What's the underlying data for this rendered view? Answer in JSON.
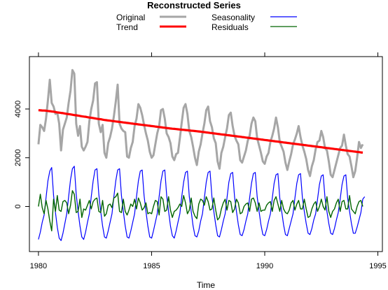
{
  "chart_data": {
    "type": "line",
    "title": "Reconstructed Series",
    "xlabel": "Time",
    "ylabel": "",
    "xlim": [
      1979.6,
      1995.2
    ],
    "ylim": [
      -1850,
      6150
    ],
    "x_ticks": [
      1980,
      1985,
      1990,
      1995
    ],
    "x_tick_labels": [
      "1980",
      "1985",
      "1990",
      "1995"
    ],
    "y_ticks": [
      0,
      2000,
      4000
    ],
    "y_tick_labels": [
      "0",
      "2000",
      "4000"
    ],
    "grid": false,
    "legend_position": "top-center",
    "x_start": 1980,
    "x_step": 0.08333,
    "series": [
      {
        "name": "Original",
        "color": "#a6a6a6",
        "values": [
          2550,
          3350,
          3250,
          3100,
          3600,
          4350,
          5200,
          4250,
          4100,
          3800,
          3850,
          3400,
          2300,
          3150,
          3400,
          3650,
          4250,
          4750,
          5600,
          5450,
          3400,
          2900,
          3300,
          2450,
          2300,
          2450,
          2650,
          3500,
          4000,
          4350,
          5050,
          5100,
          3400,
          3050,
          3350,
          2200,
          2000,
          2600,
          2850,
          3200,
          3700,
          4300,
          5000,
          3400,
          3200,
          3100,
          3050,
          2050,
          2000,
          2400,
          2650,
          3300,
          3600,
          4200,
          4050,
          3750,
          3350,
          3000,
          2700,
          2250,
          2000,
          2100,
          2550,
          3000,
          3300,
          3950,
          4000,
          3600,
          3000,
          2850,
          2600,
          2050,
          1900,
          2150,
          2200,
          2800,
          3450,
          4050,
          4200,
          3800,
          3100,
          2850,
          2450,
          2000,
          1700,
          2250,
          2550,
          3000,
          3400,
          3950,
          4100,
          3500,
          3250,
          2800,
          2600,
          1850,
          1550,
          2200,
          2450,
          2850,
          3200,
          3750,
          3850,
          3300,
          2900,
          2700,
          2550,
          1900,
          1800,
          2050,
          2300,
          2700,
          2900,
          3400,
          3650,
          3500,
          2800,
          2500,
          2200,
          1850,
          1750,
          2050,
          2200,
          2650,
          2900,
          3200,
          3650,
          3250,
          2650,
          2450,
          2250,
          1800,
          1500,
          1850,
          2150,
          2550,
          2750,
          3000,
          3300,
          2850,
          2500,
          2250,
          1950,
          1500,
          1250,
          1650,
          1900,
          2350,
          2650,
          2700,
          3100,
          2850,
          2400,
          2300,
          1850,
          1300,
          1200,
          1500,
          1800,
          2100,
          2400,
          2500,
          2950,
          2500,
          2150,
          2050,
          1650,
          1200,
          1450,
          2000,
          2650,
          2400,
          2550
        ]
      },
      {
        "name": "Trend",
        "color": "#ff0000",
        "values": [
          3950,
          3945,
          3940,
          3935,
          3930,
          3920,
          3910,
          3900,
          3890,
          3875,
          3860,
          3850,
          3840,
          3830,
          3815,
          3800,
          3790,
          3780,
          3765,
          3750,
          3740,
          3730,
          3715,
          3700,
          3690,
          3680,
          3665,
          3650,
          3640,
          3630,
          3615,
          3600,
          3590,
          3580,
          3565,
          3550,
          3540,
          3530,
          3520,
          3510,
          3500,
          3490,
          3480,
          3470,
          3460,
          3450,
          3440,
          3430,
          3420,
          3410,
          3400,
          3390,
          3380,
          3370,
          3360,
          3350,
          3340,
          3330,
          3320,
          3310,
          3300,
          3290,
          3280,
          3270,
          3260,
          3250,
          3240,
          3230,
          3220,
          3210,
          3200,
          3192,
          3184,
          3176,
          3168,
          3160,
          3152,
          3144,
          3136,
          3128,
          3120,
          3112,
          3104,
          3096,
          3088,
          3080,
          3070,
          3060,
          3050,
          3040,
          3030,
          3020,
          3010,
          3000,
          2990,
          2980,
          2970,
          2960,
          2950,
          2940,
          2930,
          2920,
          2910,
          2900,
          2890,
          2880,
          2870,
          2860,
          2850,
          2840,
          2830,
          2820,
          2810,
          2800,
          2790,
          2780,
          2770,
          2760,
          2750,
          2740,
          2730,
          2720,
          2710,
          2700,
          2690,
          2680,
          2670,
          2660,
          2650,
          2640,
          2630,
          2620,
          2610,
          2600,
          2590,
          2580,
          2570,
          2560,
          2550,
          2540,
          2530,
          2520,
          2510,
          2500,
          2490,
          2480,
          2470,
          2460,
          2450,
          2440,
          2430,
          2420,
          2410,
          2400,
          2390,
          2380,
          2370,
          2360,
          2350,
          2340,
          2330,
          2320,
          2310,
          2300,
          2290,
          2280,
          2270,
          2260,
          2250,
          2240,
          2230,
          2220,
          2210
        ]
      },
      {
        "name": "Seasonality",
        "color": "#0000ff",
        "values": [
          -1350,
          -1050,
          -650,
          -350,
          350,
          1050,
          1450,
          1600,
          450,
          -250,
          -850,
          -1300,
          -1400,
          -1100,
          -700,
          -300,
          400,
          1100,
          1550,
          1650,
          500,
          -200,
          -800,
          -1250,
          -1350,
          -1050,
          -650,
          -300,
          400,
          1050,
          1500,
          1550,
          500,
          -200,
          -800,
          -1250,
          -1300,
          -1000,
          -650,
          -300,
          400,
          1050,
          1500,
          1550,
          450,
          -200,
          -800,
          -1250,
          -1300,
          -1000,
          -650,
          -300,
          400,
          1050,
          1450,
          1500,
          450,
          -200,
          -800,
          -1250,
          -1300,
          -1000,
          -650,
          -300,
          400,
          1050,
          1450,
          1500,
          450,
          -200,
          -800,
          -1200,
          -1300,
          -1000,
          -650,
          -300,
          400,
          1000,
          1400,
          1450,
          400,
          -200,
          -800,
          -1200,
          -1250,
          -1000,
          -600,
          -300,
          350,
          1000,
          1400,
          1450,
          400,
          -200,
          -750,
          -1200,
          -1250,
          -950,
          -600,
          -300,
          350,
          1000,
          1350,
          1400,
          400,
          -200,
          -750,
          -1150,
          -1200,
          -950,
          -600,
          -300,
          350,
          950,
          1350,
          1400,
          400,
          -200,
          -750,
          -1150,
          -1200,
          -950,
          -600,
          -300,
          350,
          950,
          1300,
          1350,
          350,
          -200,
          -750,
          -1150,
          -1200,
          -900,
          -600,
          -300,
          350,
          950,
          1300,
          1350,
          350,
          -200,
          -700,
          -1100,
          -1150,
          -900,
          -550,
          -300,
          300,
          900,
          1250,
          1300,
          350,
          -200,
          -700,
          -1100,
          -1150,
          -900,
          -550,
          -250,
          300,
          900,
          1250,
          1300,
          350,
          -200,
          -700,
          -1100,
          -1100,
          -850,
          -550,
          -250,
          300,
          400
        ]
      },
      {
        "name": "Residuals",
        "color": "#006400",
        "values": [
          0,
          500,
          -50,
          -300,
          250,
          -100,
          -600,
          -1000,
          300,
          -200,
          450,
          -150,
          -200,
          200,
          250,
          150,
          -300,
          50,
          650,
          500,
          -250,
          -200,
          300,
          -450,
          -100,
          -150,
          50,
          250,
          -100,
          200,
          300,
          350,
          -200,
          -250,
          250,
          -400,
          -300,
          50,
          100,
          -50,
          350,
          400,
          550,
          -200,
          -250,
          300,
          -200,
          -350,
          -150,
          100,
          0,
          300,
          -100,
          350,
          150,
          -150,
          -50,
          150,
          -300,
          -250,
          -300,
          0,
          250,
          200,
          -350,
          400,
          300,
          -200,
          -150,
          400,
          -150,
          -450,
          -200,
          -150,
          -50,
          100,
          0,
          450,
          150,
          -300,
          -150,
          350,
          -200,
          -400,
          -500,
          100,
          300,
          250,
          50,
          400,
          200,
          -150,
          -100,
          350,
          -150,
          -550,
          -450,
          -100,
          150,
          300,
          -150,
          250,
          200,
          -250,
          -100,
          300,
          150,
          -300,
          -250,
          0,
          100,
          150,
          -200,
          300,
          350,
          150,
          -200,
          150,
          -200,
          -150,
          -150,
          50,
          150,
          200,
          -200,
          250,
          400,
          100,
          -200,
          250,
          -100,
          -250,
          -300,
          -150,
          150,
          250,
          -150,
          100,
          250,
          -100,
          -100,
          300,
          -100,
          -450,
          -400,
          -100,
          100,
          200,
          -200,
          0,
          300,
          0,
          -150,
          400,
          -200,
          -450,
          -200,
          -100,
          150,
          300,
          -200,
          200,
          250,
          -100,
          -100,
          450,
          -100,
          -200,
          -300,
          0,
          200,
          250,
          0
        ]
      }
    ]
  }
}
